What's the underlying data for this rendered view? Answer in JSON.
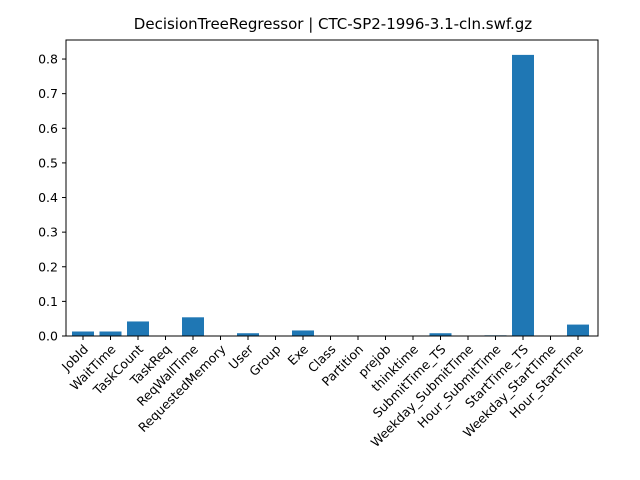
{
  "chart_data": {
    "type": "bar",
    "title": "DecisionTreeRegressor | CTC-SP2-1996-3.1-cln.swf.gz",
    "xlabel": "",
    "ylabel": "",
    "ylim": [
      0,
      0.855
    ],
    "yticks": [
      0.0,
      0.1,
      0.2,
      0.3,
      0.4,
      0.5,
      0.6,
      0.7,
      0.8
    ],
    "ytick_labels": [
      "0.0",
      "0.1",
      "0.2",
      "0.3",
      "0.4",
      "0.5",
      "0.6",
      "0.7",
      "0.8"
    ],
    "categories": [
      "JobId",
      "WaitTime",
      "TaskCount",
      "TaskReq",
      "ReqWallTime",
      "RequestedMemory",
      "User",
      "Group",
      "Exe",
      "Class",
      "Partition",
      "prejob",
      "thinktime",
      "SubmitTime_TS",
      "Weekday_SubmitTime",
      "Hour_SubmitTime",
      "StartTime_TS",
      "Weekday_StartTime",
      "Hour_StartTime"
    ],
    "values": [
      0.013,
      0.013,
      0.042,
      0.0,
      0.054,
      0.0,
      0.008,
      0.0,
      0.016,
      0.0,
      0.0,
      0.0,
      0.0,
      0.008,
      0.0,
      0.002,
      0.812,
      0.0,
      0.033
    ],
    "bar_color": "#1f77b4",
    "grid": false,
    "legend": "none"
  }
}
